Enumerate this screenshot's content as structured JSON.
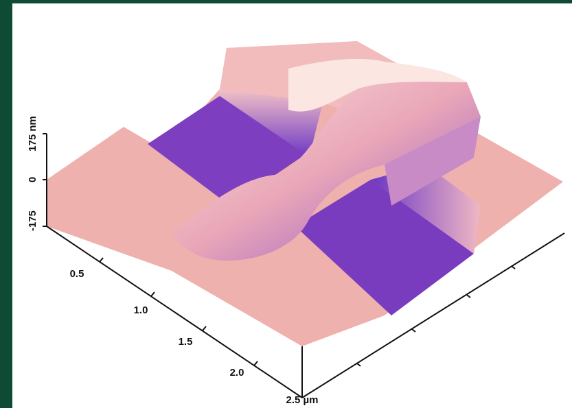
{
  "z_axis": {
    "labels": [
      "175 nm",
      "0",
      "-175"
    ]
  },
  "x_axis": {
    "labels": [
      "0.5",
      "1.0",
      "1.5",
      "2.0",
      "2.5 µm"
    ]
  }
}
